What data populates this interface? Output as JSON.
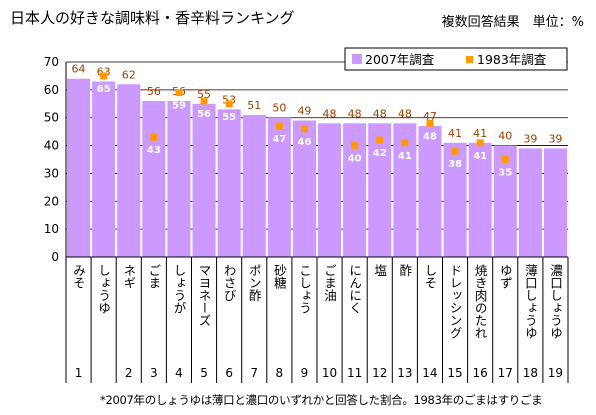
{
  "title": "日本人の好きな調味料・香辛料ランキング",
  "note": "複数回答結果　単位：%",
  "footnote": "*2007年のしょうゆは薄口と濃口のいずれかと回答した割合。1983年のごまはすりごま",
  "colors": {
    "bar": "#cc99ff",
    "marker": "#ff9900",
    "label2007": "#a04000",
    "label1983": "#ffffff"
  },
  "chart_data": {
    "type": "bar",
    "ylim": [
      0,
      70
    ],
    "yticks": [
      0,
      10,
      20,
      30,
      40,
      50,
      60,
      70
    ],
    "grid": true,
    "legend_placement": "top-right",
    "categories": [
      "みそ",
      "しょうゆ",
      "ネギ",
      "ごま",
      "しょうが",
      "マヨネーズ",
      "わさび",
      "ポン酢",
      "砂糖",
      "こしょう",
      "ごま油",
      "にんにく",
      "塩",
      "酢",
      "しそ",
      "ドレッシング",
      "焼き肉のたれ",
      "ゆず",
      "薄口しょうゆ",
      "濃口しょうゆ"
    ],
    "ranks": [
      "1",
      "",
      "2",
      "3",
      "4",
      "5",
      "6",
      "7",
      "8",
      "9",
      "10",
      "11",
      "12",
      "13",
      "14",
      "15",
      "16",
      "17",
      "18",
      "19"
    ],
    "series": [
      {
        "name": "2007年調査",
        "values": [
          64,
          63,
          62,
          56,
          56,
          55,
          53,
          51,
          50,
          49,
          48,
          48,
          48,
          48,
          47,
          41,
          41,
          40,
          39,
          39
        ]
      },
      {
        "name": "1983年調査",
        "values": [
          null,
          65,
          null,
          43,
          59,
          56,
          55,
          null,
          47,
          46,
          null,
          40,
          42,
          41,
          48,
          38,
          41,
          35,
          null,
          null
        ]
      }
    ]
  }
}
